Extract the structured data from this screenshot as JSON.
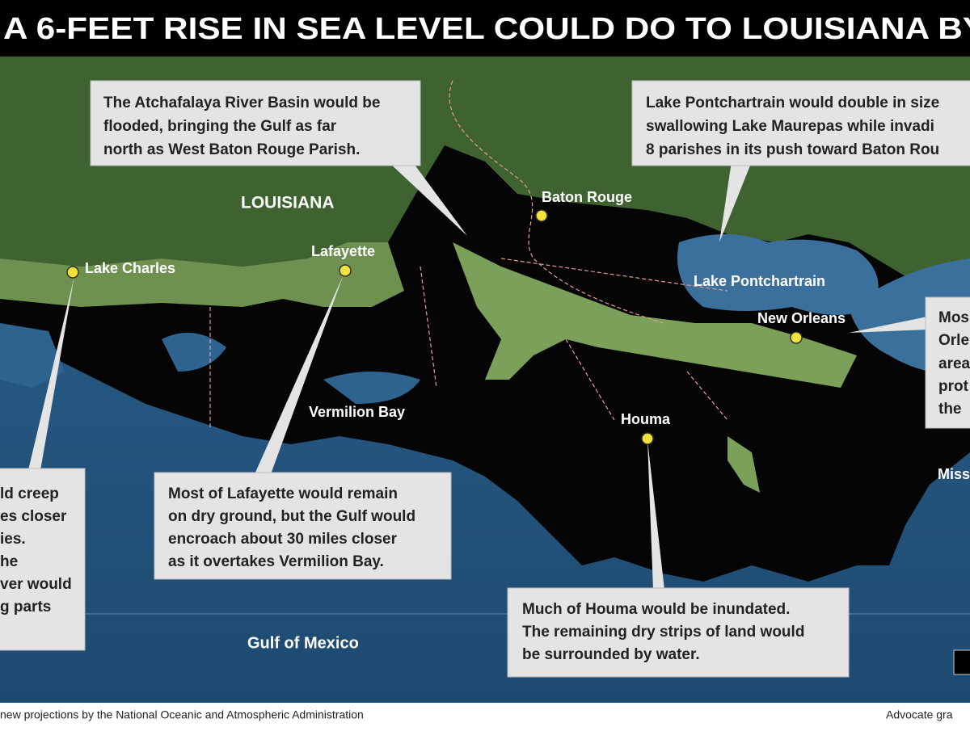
{
  "title": "A 6-FEET RISE IN SEA LEVEL COULD DO TO LOUISIANA BY",
  "callouts": [
    {
      "lines": [
        "The Atchafalaya River Basin would be",
        "flooded, bringing the Gulf as far",
        "north as West Baton Rouge Parish."
      ]
    },
    {
      "lines": [
        "Lake Pontchartrain would double in size",
        "swallowing Lake Maurepas while invadi",
        "8 parishes in its push toward Baton Rou"
      ]
    },
    {
      "lines": [
        "ld creep",
        "es closer",
        "ies.",
        "he",
        "ver would",
        "g parts"
      ]
    },
    {
      "lines": [
        "Most of Lafayette would remain",
        "on dry ground, but the Gulf would",
        "encroach about 30 miles closer",
        "as it overtakes Vermilion Bay."
      ]
    },
    {
      "lines": [
        "Much of Houma would be inundated.",
        "The remaining dry strips of land would",
        "be surrounded by water."
      ]
    },
    {
      "lines": [
        "Mos",
        "Orle",
        "area",
        "prot",
        "the"
      ]
    }
  ],
  "places": [
    "LOUISIANA",
    "Lake Charles",
    "Lafayette",
    "Baton Rouge",
    "Lake Pontchartrain",
    "New Orleans",
    "Vermilion Bay",
    "Houma",
    "Gulf of Mexico",
    "Miss"
  ],
  "footer": {
    "source": "new projections by the National Oceanic and Atmospheric Administration",
    "credit": "Advocate gra"
  }
}
